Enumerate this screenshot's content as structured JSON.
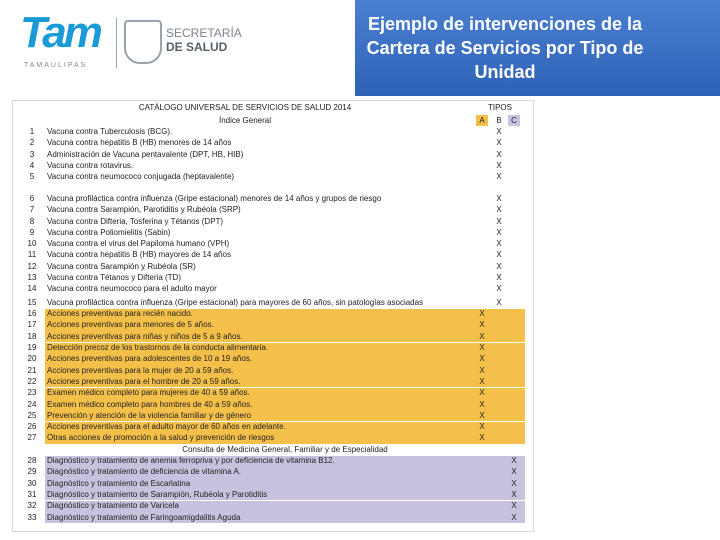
{
  "header": {
    "logo": "Tam",
    "logo_subtitle": "TAMAULIPAS",
    "agency_line1": "SECRETARÍA",
    "agency_line2": "DE SALUD",
    "title": "Ejemplo de intervenciones de la Cartera de Servicios por Tipo de Unidad"
  },
  "table": {
    "title": "CATÁLOGO UNIVERSAL DE SERVICIOS DE SALUD 2014",
    "subtitle": "Índice General",
    "types_label": "TIPOS",
    "columns": [
      "A",
      "B",
      "C"
    ],
    "groups": [
      {
        "rows": [
          {
            "number": 1,
            "service": "Vacuna contra Tuberculosis (BCG).",
            "B": "X"
          },
          {
            "number": 2,
            "service": "Vacuna contra hepatitis B (HB) menores de 14 años",
            "B": "X"
          },
          {
            "number": 3,
            "service": "Administración de Vacuna pentavalente (DPT, HB, HIB)",
            "B": "X"
          },
          {
            "number": 4,
            "service": "Vacuna contra rotavirus.",
            "B": "X"
          },
          {
            "number": 5,
            "service": "Vacuna contra neumococo conjugada (heptavalente)",
            "B": "X"
          }
        ]
      },
      {
        "rows": [
          {
            "number": 6,
            "service": "Vacuna profiláctica contra influenza (Gripe estacional) menores de 14 años y grupos de riesgo",
            "B": "X"
          },
          {
            "number": 7,
            "service": "Vacuna contra Sarampión, Parotiditis y Rubéola (SRP)",
            "B": "X"
          },
          {
            "number": 8,
            "service": "Vacuna contra Difteria, Tosferina y Tétanos (DPT)",
            "B": "X"
          },
          {
            "number": 9,
            "service": "Vacuna contra Poliomielitis (Sabin)",
            "B": "X"
          },
          {
            "number": 10,
            "service": "Vacuna contra el virus del Papiloma humano (VPH)",
            "B": "X"
          },
          {
            "number": 11,
            "service": "Vacuna contra hepatitis B (HB) mayores de 14 años",
            "B": "X"
          },
          {
            "number": 12,
            "service": "Vacuna contra Sarampión y Rubéola (SR)",
            "B": "X"
          },
          {
            "number": 13,
            "service": "Vacuna contra Tétanos y Difteria (TD)",
            "B": "X"
          },
          {
            "number": 14,
            "service": "Vacuna contra neumococo para el adulto mayor",
            "B": "X"
          }
        ]
      },
      {
        "rows": [
          {
            "number": 15,
            "service": "Vacuna profiláctica contra influenza (Gripe estacional) para mayores de 60 años, sin patologías asociadas",
            "B": "X"
          }
        ]
      },
      {
        "color": "#f5c04a",
        "rows": [
          {
            "number": 16,
            "service": "Acciones preventivas para recién nacido.",
            "A": "X"
          },
          {
            "number": 17,
            "service": "Acciones preventivas para menores de 5 años.",
            "A": "X"
          },
          {
            "number": 18,
            "service": "Acciones preventivas para niñas y niños de 5 a 9 años.",
            "A": "X"
          },
          {
            "number": 19,
            "service": "Detección precoz de los trastornos de la conducta alimentaria.",
            "A": "X"
          },
          {
            "number": 20,
            "service": "Acciones preventivas para adolescentes de 10 a 19 años.",
            "A": "X"
          },
          {
            "number": 21,
            "service": "Acciones preventivas para la mujer de 20 a 59 años.",
            "A": "X"
          },
          {
            "number": 22,
            "service": "Acciones preventivas para el hombre de 20 a 59 años.",
            "A": "X"
          },
          {
            "number": 23,
            "service": "Examen médico completo para mujeres de 40 a 59 años.",
            "A": "X"
          },
          {
            "number": 24,
            "service": "Examen médico completo para hombres de 40 a 59 años.",
            "A": "X"
          },
          {
            "number": 25,
            "service": "Prevención y atención de la violencia familiar y de género",
            "A": "X"
          },
          {
            "number": 26,
            "service": "Acciones preventivas para el adulto mayor de 60 años en adelante.",
            "A": "X"
          },
          {
            "number": 27,
            "service": "Otras acciones de promoción a la salud y prevención de riesgos",
            "A": "X"
          }
        ]
      },
      {
        "heading": "Consulta de Medicina General, Familiar y de Especialidad",
        "color": "#c8c2df",
        "rows": [
          {
            "number": 28,
            "service": "Diagnóstico y tratamiento de anemia ferropriva y por deficiencia de vitamina B12.",
            "C": "X"
          },
          {
            "number": 29,
            "service": "Diagnóstico y tratamiento de deficiencia de vitamina A.",
            "C": "X"
          },
          {
            "number": 30,
            "service": "Diagnóstico y tratamiento de Escarlatina",
            "C": "X"
          },
          {
            "number": 31,
            "service": "Diagnóstico y tratamiento de Sarampión, Rubéola y Parotiditis",
            "C": "X"
          },
          {
            "number": 32,
            "service": "Diagnóstico y tratamiento de Varicela",
            "C": "X"
          },
          {
            "number": 33,
            "service": "Diagnóstico y tratamiento de Faringoamigdalitis Aguda",
            "C": "X"
          }
        ]
      }
    ]
  }
}
